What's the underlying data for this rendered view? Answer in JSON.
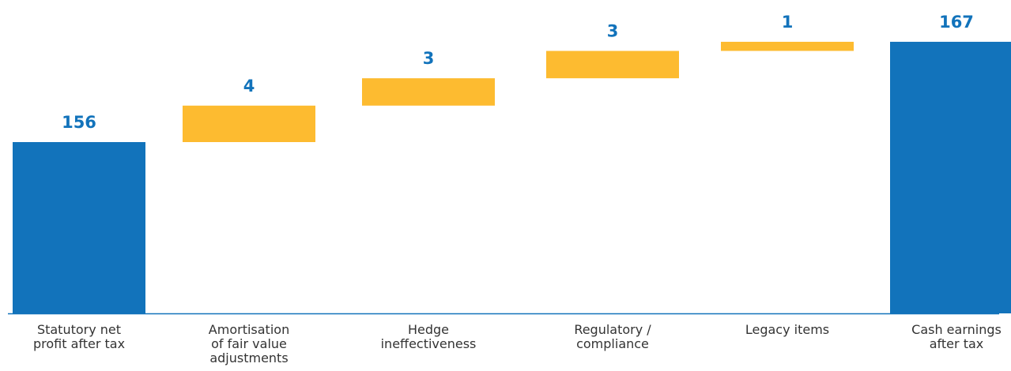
{
  "chart_data": {
    "type": "bar",
    "subtype": "waterfall",
    "title": "",
    "xlabel": "",
    "ylabel": "",
    "grid": false,
    "legend": "none",
    "categories": [
      [
        "Statutory net",
        "profit after tax"
      ],
      [
        "Amortisation",
        "of fair value",
        "adjustments"
      ],
      [
        "Hedge",
        "ineffectiveness"
      ],
      [
        "Regulatory /",
        "compliance"
      ],
      [
        "Legacy items"
      ],
      [
        "Cash earnings",
        "after tax"
      ]
    ],
    "values": [
      156,
      4,
      3,
      3,
      1,
      167
    ],
    "kinds": [
      "total",
      "increase",
      "increase",
      "increase",
      "increase",
      "total"
    ],
    "data_labels": [
      "156",
      "4",
      "3",
      "3",
      "1",
      "167"
    ],
    "colors": {
      "total": "#1273BB",
      "increase": "#FDBB30",
      "label": "#1273BB",
      "axis": "#1273BB"
    }
  }
}
